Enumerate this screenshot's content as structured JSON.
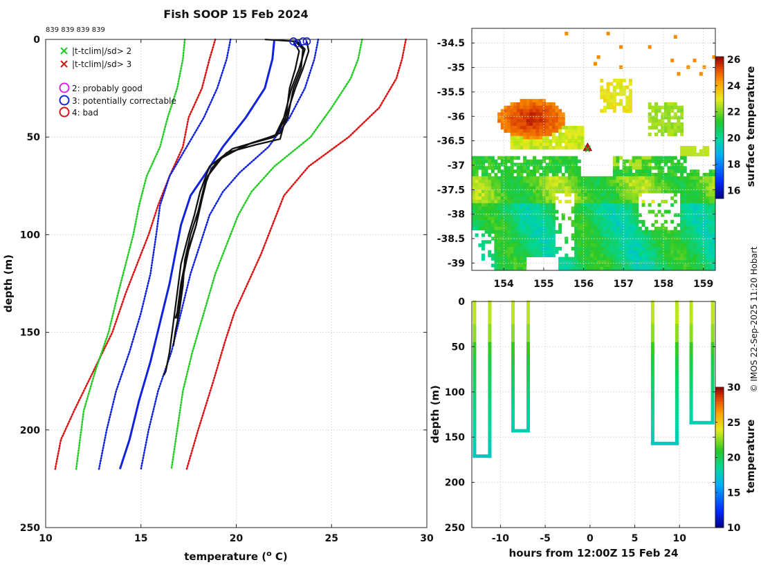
{
  "figure": {
    "credit": "© IMOS 22-Sep-2025 11:20 Hobart"
  },
  "chart_data": [
    {
      "type": "line",
      "title": "Fish SOOP 15 Feb 2024",
      "id_label": "839 839 839 839",
      "xlabel": "temperature (",
      "xlabel_sup": "o",
      "xlabel_end": " C)",
      "ylabel": "depth (m)",
      "xlim": [
        10,
        30
      ],
      "ylim": [
        0,
        250
      ],
      "y_reversed": true,
      "xticks": [
        10,
        15,
        20,
        25,
        30
      ],
      "yticks": [
        0,
        50,
        100,
        150,
        200,
        250
      ],
      "grid": true,
      "legend": [
        {
          "marker": "x",
          "color": "#22cc22",
          "label": "|t-tclim|/sd> 2"
        },
        {
          "marker": "x",
          "color": "#dd1111",
          "label": "|t-tclim|/sd> 3"
        },
        {
          "marker": "o",
          "color": "#dd22dd",
          "label": "2: probably good"
        },
        {
          "marker": "o",
          "color": "#1122dd",
          "label": "3: potentially correctable"
        },
        {
          "marker": "o",
          "color": "#dd1111",
          "label": "4: bad"
        }
      ],
      "series": [
        {
          "name": "clim -3sd",
          "color": "#dd1111",
          "style": "dotted",
          "points": [
            [
              18.9,
              0
            ],
            [
              18.6,
              10
            ],
            [
              18.2,
              25
            ],
            [
              17.5,
              40
            ],
            [
              17.2,
              55
            ],
            [
              16.5,
              70
            ],
            [
              15.9,
              85
            ],
            [
              15.4,
              100
            ],
            [
              14.8,
              115
            ],
            [
              14.2,
              130
            ],
            [
              13.5,
              150
            ],
            [
              12.5,
              170
            ],
            [
              11.5,
              190
            ],
            [
              10.8,
              205
            ],
            [
              10.5,
              220
            ]
          ]
        },
        {
          "name": "clim -2sd",
          "color": "#22cc22",
          "style": "dotted",
          "points": [
            [
              17.3,
              0
            ],
            [
              17.2,
              10
            ],
            [
              16.9,
              25
            ],
            [
              16.4,
              40
            ],
            [
              16.0,
              55
            ],
            [
              15.3,
              70
            ],
            [
              14.9,
              85
            ],
            [
              14.6,
              100
            ],
            [
              14.2,
              115
            ],
            [
              13.8,
              130
            ],
            [
              13.3,
              150
            ],
            [
              12.6,
              170
            ],
            [
              12.0,
              190
            ],
            [
              11.8,
              205
            ],
            [
              11.6,
              220
            ]
          ]
        },
        {
          "name": "clim -1sd",
          "color": "#1122dd",
          "style": "dotted",
          "points": [
            [
              19.7,
              0
            ],
            [
              19.5,
              10
            ],
            [
              19.0,
              25
            ],
            [
              18.3,
              40
            ],
            [
              17.4,
              55
            ],
            [
              16.5,
              70
            ],
            [
              16.0,
              85
            ],
            [
              15.8,
              100
            ],
            [
              15.5,
              120
            ],
            [
              15.0,
              140
            ],
            [
              14.4,
              160
            ],
            [
              13.7,
              180
            ],
            [
              13.2,
              200
            ],
            [
              12.8,
              220
            ]
          ]
        },
        {
          "name": "clim mean",
          "color": "#1122dd",
          "style": "solid",
          "points": [
            [
              22.0,
              0
            ],
            [
              21.9,
              10
            ],
            [
              21.5,
              25
            ],
            [
              20.5,
              40
            ],
            [
              19.3,
              55
            ],
            [
              18.3,
              70
            ],
            [
              17.6,
              80
            ],
            [
              17.1,
              95
            ],
            [
              16.8,
              110
            ],
            [
              16.5,
              125
            ],
            [
              16.0,
              145
            ],
            [
              15.5,
              165
            ],
            [
              14.9,
              185
            ],
            [
              14.4,
              205
            ],
            [
              13.9,
              220
            ]
          ]
        },
        {
          "name": "clim +1sd",
          "color": "#1122dd",
          "style": "dotted",
          "points": [
            [
              24.3,
              0
            ],
            [
              24.1,
              10
            ],
            [
              23.6,
              25
            ],
            [
              22.8,
              40
            ],
            [
              21.7,
              55
            ],
            [
              20.2,
              68
            ],
            [
              19.3,
              78
            ],
            [
              18.6,
              90
            ],
            [
              18.1,
              105
            ],
            [
              17.6,
              120
            ],
            [
              17.1,
              140
            ],
            [
              16.6,
              160
            ],
            [
              15.9,
              180
            ],
            [
              15.4,
              200
            ],
            [
              15.0,
              220
            ]
          ]
        },
        {
          "name": "clim +2sd",
          "color": "#22cc22",
          "style": "dotted",
          "points": [
            [
              26.6,
              0
            ],
            [
              26.4,
              10
            ],
            [
              26.0,
              20
            ],
            [
              25.0,
              35
            ],
            [
              23.9,
              50
            ],
            [
              22.0,
              65
            ],
            [
              20.8,
              78
            ],
            [
              20.1,
              90
            ],
            [
              19.5,
              105
            ],
            [
              18.9,
              120
            ],
            [
              18.3,
              140
            ],
            [
              17.7,
              160
            ],
            [
              17.2,
              180
            ],
            [
              16.9,
              200
            ],
            [
              16.6,
              220
            ]
          ]
        },
        {
          "name": "clim +3sd",
          "color": "#dd1111",
          "style": "dotted",
          "points": [
            [
              28.9,
              0
            ],
            [
              28.7,
              10
            ],
            [
              28.4,
              20
            ],
            [
              27.5,
              35
            ],
            [
              25.9,
              50
            ],
            [
              23.8,
              65
            ],
            [
              22.5,
              80
            ],
            [
              21.9,
              95
            ],
            [
              21.3,
              110
            ],
            [
              20.6,
              125
            ],
            [
              19.9,
              140
            ],
            [
              19.4,
              155
            ],
            [
              18.8,
              175
            ],
            [
              18.0,
              200
            ],
            [
              17.4,
              220
            ]
          ]
        },
        {
          "name": "profile 1",
          "color": "#111111",
          "style": "solid",
          "width": 2.3,
          "points": [
            [
              21.5,
              0
            ],
            [
              23.1,
              1
            ],
            [
              23.5,
              5
            ],
            [
              23.4,
              15
            ],
            [
              23.0,
              25
            ],
            [
              22.7,
              40
            ],
            [
              22.3,
              48
            ],
            [
              21.2,
              52
            ],
            [
              19.8,
              56
            ],
            [
              18.6,
              65
            ],
            [
              18.1,
              78
            ],
            [
              17.8,
              90
            ],
            [
              17.5,
              100
            ],
            [
              17.1,
              115
            ],
            [
              16.9,
              130
            ],
            [
              16.7,
              145
            ],
            [
              16.5,
              160
            ],
            [
              16.3,
              170
            ],
            [
              16.2,
              172
            ]
          ]
        },
        {
          "name": "profile 2",
          "color": "#111111",
          "style": "solid",
          "width": 2.3,
          "points": [
            [
              23.2,
              1
            ],
            [
              23.6,
              5
            ],
            [
              23.3,
              15
            ],
            [
              22.9,
              25
            ],
            [
              22.5,
              40
            ],
            [
              22.0,
              50
            ],
            [
              20.5,
              54
            ],
            [
              19.0,
              62
            ],
            [
              18.4,
              72
            ],
            [
              18.1,
              84
            ],
            [
              17.9,
              95
            ],
            [
              17.4,
              110
            ],
            [
              17.1,
              125
            ],
            [
              16.9,
              140
            ],
            [
              16.8,
              143
            ]
          ]
        },
        {
          "name": "profile 3",
          "color": "#111111",
          "style": "solid",
          "width": 2.3,
          "points": [
            [
              23.7,
              1
            ],
            [
              23.8,
              6
            ],
            [
              23.5,
              15
            ],
            [
              23.1,
              25
            ],
            [
              22.6,
              40
            ],
            [
              22.1,
              49
            ],
            [
              20.8,
              53
            ],
            [
              19.3,
              60
            ],
            [
              18.5,
              70
            ],
            [
              18.2,
              82
            ],
            [
              17.9,
              95
            ],
            [
              17.5,
              108
            ],
            [
              17.2,
              122
            ],
            [
              17.0,
              137
            ],
            [
              16.9,
              143
            ]
          ]
        },
        {
          "name": "profile 4",
          "color": "#111111",
          "style": "solid",
          "width": 2.3,
          "points": [
            [
              23.0,
              1
            ],
            [
              23.3,
              6
            ],
            [
              23.1,
              15
            ],
            [
              22.8,
              25
            ],
            [
              22.6,
              40
            ],
            [
              22.3,
              51
            ],
            [
              21.0,
              54
            ],
            [
              19.5,
              58
            ],
            [
              18.7,
              66
            ],
            [
              18.3,
              76
            ],
            [
              18.0,
              88
            ],
            [
              17.6,
              100
            ],
            [
              17.3,
              113
            ],
            [
              17.2,
              126
            ],
            [
              17.0,
              140
            ],
            [
              16.8,
              150
            ],
            [
              16.7,
              157
            ]
          ]
        }
      ],
      "qc_markers": [
        [
          23.0,
          1
        ],
        [
          23.5,
          1
        ],
        [
          23.7,
          1
        ],
        [
          23.2,
          2
        ]
      ]
    },
    {
      "type": "heatmap",
      "xticks": [
        154,
        155,
        156,
        157,
        158,
        159
      ],
      "yticks": [
        -34.5,
        -35,
        -35.5,
        -36,
        -36.5,
        -37,
        -37.5,
        -38,
        -38.5,
        -39
      ],
      "xlim": [
        153.2,
        159.3
      ],
      "ylim": [
        -39.15,
        -34.2
      ],
      "colorbar_label": "surface temperature",
      "colorbar_ticks": [
        16,
        18,
        20,
        22,
        24,
        26
      ],
      "colorbar_range": [
        15.4,
        26.2
      ],
      "station_marker": {
        "lon": 156.1,
        "lat": -36.63,
        "color": "#dd1111"
      }
    },
    {
      "type": "scatter",
      "xlabel": "hours from 12:00Z 15 Feb 24",
      "ylabel": "depth (m)",
      "xlim": [
        -13.2,
        14
      ],
      "ylim": [
        0,
        250
      ],
      "y_reversed": true,
      "xticks": [
        -10,
        -5,
        0,
        5,
        10
      ],
      "yticks": [
        0,
        50,
        100,
        150,
        200,
        250
      ],
      "colorbar_label": "temperature",
      "colorbar_ticks": [
        10,
        15,
        20,
        25,
        30
      ],
      "colorbar_range": [
        10,
        30
      ],
      "casts": [
        {
          "x_down": -12.9,
          "x_up": -11.2,
          "bottom": 171,
          "bottom_temp": 17.6
        },
        {
          "x_down": -8.6,
          "x_up": -6.9,
          "bottom": 143,
          "bottom_temp": 17.9
        },
        {
          "x_down": 7.0,
          "x_up": 9.7,
          "bottom": 157,
          "bottom_temp": 17.7
        },
        {
          "x_down": 11.3,
          "x_up": 13.7,
          "bottom": 134,
          "bottom_temp": 18.0
        }
      ]
    }
  ]
}
